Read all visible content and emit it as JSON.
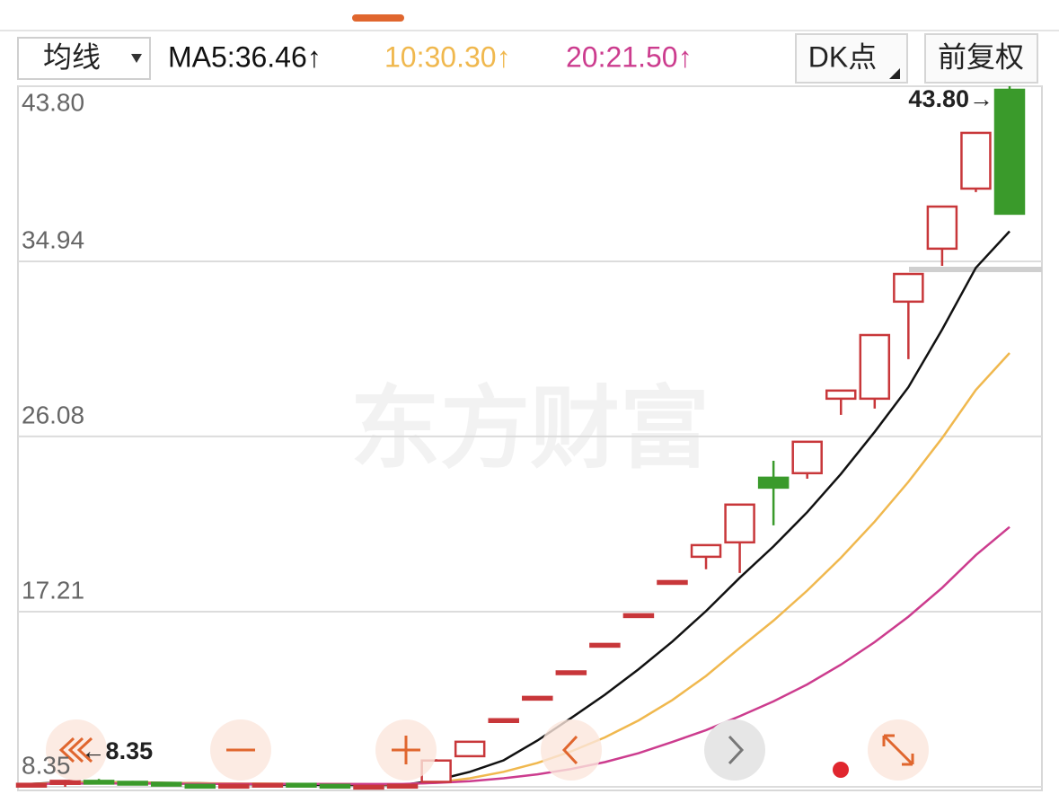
{
  "toolbar": {
    "dropdown": "均线",
    "adjust_button": "DK点",
    "rights_button": "前复权"
  },
  "chart_data": {
    "type": "candlestick",
    "watermark": "东方财富",
    "max_label": "43.80→",
    "min_label": "←8.35",
    "ylim": [
      8.35,
      43.8
    ],
    "yticks": [
      {
        "value": 43.8,
        "label": "43.80"
      },
      34.94,
      26.08,
      17.21,
      8.35
    ],
    "grid": true,
    "up_color": "#c8373a",
    "down_color": "#3a9a2b",
    "open": [
      8.4,
      8.5,
      8.65,
      8.6,
      8.55,
      8.45,
      8.4,
      8.45,
      8.5,
      8.45,
      8.4,
      8.4,
      8.6,
      9.9,
      11.77,
      12.9,
      14.1,
      15.58,
      17.08,
      18.76,
      19.99,
      20.72,
      23.99,
      24.22,
      27.99,
      27.99,
      32.9,
      35.58,
      38.62,
      43.62
    ],
    "high": [
      8.55,
      8.7,
      8.75,
      8.65,
      8.6,
      8.5,
      8.5,
      8.55,
      8.55,
      8.5,
      8.45,
      8.5,
      9.75,
      10.63,
      11.77,
      12.9,
      14.19,
      15.58,
      17.08,
      18.76,
      20.58,
      22.63,
      24.85,
      25.81,
      28.4,
      31.21,
      34.3,
      37.71,
      41.44,
      43.8
    ],
    "low": [
      8.38,
      8.35,
      8.55,
      8.5,
      8.4,
      8.38,
      8.36,
      8.4,
      8.42,
      8.38,
      8.36,
      8.38,
      8.55,
      9.9,
      11.77,
      12.9,
      14.1,
      15.58,
      17.08,
      18.76,
      19.36,
      19.17,
      21.58,
      23.94,
      27.17,
      27.49,
      29.99,
      34.71,
      38.44,
      37.35
    ],
    "close": [
      8.5,
      8.65,
      8.6,
      8.55,
      8.45,
      8.4,
      8.45,
      8.5,
      8.45,
      8.4,
      8.4,
      8.45,
      9.68,
      10.63,
      11.77,
      12.9,
      14.19,
      15.58,
      17.08,
      18.76,
      20.58,
      22.63,
      23.49,
      25.81,
      28.4,
      31.21,
      34.3,
      37.71,
      41.44,
      37.35
    ],
    "series": [
      {
        "name": "MA5:36.46↑",
        "color": "#111111",
        "values": [
          8.5,
          8.58,
          8.58,
          8.58,
          8.55,
          8.53,
          8.49,
          8.47,
          8.45,
          8.44,
          8.44,
          8.44,
          8.68,
          9.11,
          9.69,
          10.69,
          11.83,
          13.01,
          14.3,
          15.7,
          17.24,
          18.93,
          20.51,
          22.25,
          24.18,
          26.31,
          28.57,
          31.49,
          34.61,
          36.46
        ]
      },
      {
        "name": "10:30.30↑",
        "color": "#f0b84e",
        "values": [
          8.5,
          8.55,
          8.58,
          8.57,
          8.55,
          8.53,
          8.52,
          8.51,
          8.5,
          8.5,
          8.48,
          8.47,
          8.57,
          8.78,
          9.11,
          9.56,
          10.14,
          10.85,
          11.71,
          12.74,
          13.96,
          15.38,
          16.76,
          18.28,
          19.94,
          21.77,
          23.78,
          26.0,
          28.43,
          30.3
        ]
      },
      {
        "name": "20:21.50↑",
        "color": "#cc3c8e",
        "values": [
          8.5,
          8.51,
          8.52,
          8.52,
          8.51,
          8.5,
          8.5,
          8.5,
          8.5,
          8.49,
          8.49,
          8.49,
          8.55,
          8.63,
          8.78,
          8.98,
          9.25,
          9.6,
          10.05,
          10.62,
          11.22,
          11.92,
          12.67,
          13.53,
          14.53,
          15.67,
          16.96,
          18.42,
          20.07,
          21.5
        ]
      }
    ]
  }
}
